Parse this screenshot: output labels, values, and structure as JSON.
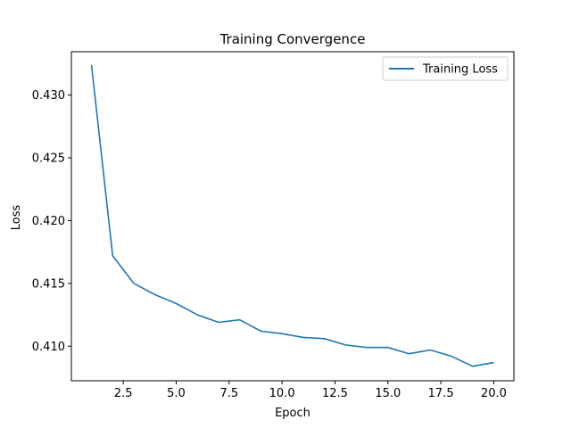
{
  "chart_data": {
    "type": "line",
    "title": "Training Convergence",
    "xlabel": "Epoch",
    "ylabel": "Loss",
    "xlim": [
      0.05,
      20.95
    ],
    "ylim": [
      0.40725,
      0.43345
    ],
    "xticks": [
      2.5,
      5.0,
      7.5,
      10.0,
      12.5,
      15.0,
      17.5,
      20.0
    ],
    "xtick_labels": [
      "2.5",
      "5.0",
      "7.5",
      "10.0",
      "12.5",
      "15.0",
      "17.5",
      "20.0"
    ],
    "yticks": [
      0.41,
      0.415,
      0.42,
      0.425,
      0.43
    ],
    "ytick_labels": [
      "0.410",
      "0.415",
      "0.420",
      "0.425",
      "0.430"
    ],
    "grid": false,
    "legend_position": "upper right",
    "x": [
      1,
      2,
      3,
      4,
      5,
      6,
      7,
      8,
      9,
      10,
      11,
      12,
      13,
      14,
      15,
      16,
      17,
      18,
      19,
      20
    ],
    "series": [
      {
        "name": "Training Loss",
        "color": "#1f77b4",
        "values": [
          0.4324,
          0.4172,
          0.415,
          0.4141,
          0.4134,
          0.4125,
          0.4119,
          0.4121,
          0.4112,
          0.411,
          0.4107,
          0.4106,
          0.4101,
          0.4099,
          0.4099,
          0.4094,
          0.4097,
          0.4092,
          0.4084,
          0.4087
        ]
      }
    ]
  }
}
